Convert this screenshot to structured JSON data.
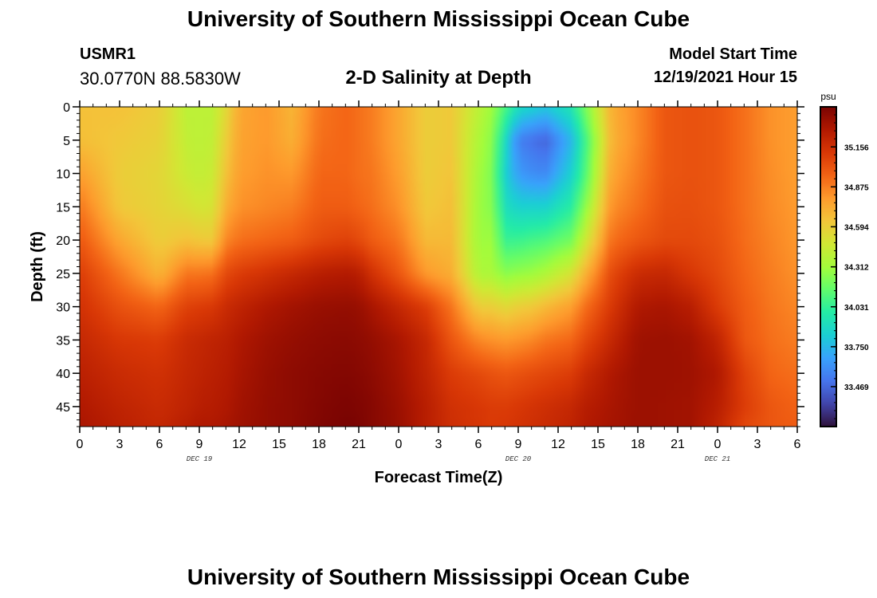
{
  "header": {
    "title": "University of Southern Mississippi Ocean Cube",
    "station_id": "USMR1",
    "coords": "30.0770N  88.5830W",
    "plot_title": "2-D Salinity at Depth",
    "start_label": "Model Start Time",
    "start_value": "12/19/2021 Hour 15"
  },
  "footer": {
    "title": "University of Southern Mississippi Ocean Cube"
  },
  "colors": {
    "colormap": [
      "#30123b",
      "#4145ab",
      "#4675ed",
      "#39a2fc",
      "#1bcfd4",
      "#24eca6",
      "#61fc6c",
      "#a4fc3b",
      "#d1e834",
      "#f3c63a",
      "#fe9b2d",
      "#f36315",
      "#d93806",
      "#b11901",
      "#7a0402"
    ]
  },
  "chart_data": {
    "type": "heatmap",
    "title": "2-D Salinity at Depth",
    "xlabel": "Forecast Time(Z)",
    "ylabel": "Depth (ft)",
    "x_tick_labels": [
      "0",
      "3",
      "6",
      "9",
      "12",
      "15",
      "18",
      "21",
      "0",
      "3",
      "6",
      "9",
      "12",
      "15",
      "18",
      "21",
      "0",
      "3",
      "6"
    ],
    "date_labels": [
      {
        "label": "DEC 19",
        "hours": 9
      },
      {
        "label": "DEC 20",
        "hours": 33
      },
      {
        "label": "DEC 21",
        "hours": 48
      }
    ],
    "x_range_hours": [
      0,
      54
    ],
    "x_step_hours": 1,
    "y_ticks": [
      0,
      5,
      10,
      15,
      20,
      25,
      30,
      35,
      40,
      45
    ],
    "ylim": [
      0,
      48
    ],
    "y_step_ft": 1,
    "colorbar": {
      "unit": "psu",
      "ticks": [
        33.469,
        33.75,
        34.031,
        34.312,
        34.594,
        34.875,
        35.156
      ],
      "range": [
        33.188,
        35.438
      ]
    },
    "profiles": {
      "hours": [
        0,
        3,
        6,
        8,
        9,
        10,
        11,
        12,
        14,
        16,
        18,
        20,
        21,
        22,
        24,
        26,
        28,
        30,
        31,
        32,
        33,
        34,
        35,
        37,
        38,
        40,
        42,
        44,
        46,
        48,
        50,
        52,
        54
      ],
      "depths": [
        0,
        5,
        10,
        15,
        20,
        25,
        30,
        35,
        40,
        45,
        48
      ],
      "values": [
        [
          34.65,
          34.66,
          34.78,
          34.9,
          35.0,
          35.1,
          35.15,
          35.2,
          35.24,
          35.28,
          35.3
        ],
        [
          34.65,
          34.62,
          34.6,
          34.62,
          34.75,
          34.9,
          35.02,
          35.12,
          35.18,
          35.22,
          35.24
        ],
        [
          34.6,
          34.58,
          34.56,
          34.57,
          34.6,
          34.7,
          34.95,
          35.1,
          35.15,
          35.18,
          35.2
        ],
        [
          34.4,
          34.42,
          34.45,
          34.52,
          34.65,
          34.9,
          35.08,
          35.18,
          35.2,
          35.22,
          35.25
        ],
        [
          34.4,
          34.4,
          34.42,
          34.48,
          34.62,
          34.9,
          35.1,
          35.2,
          35.22,
          35.25,
          35.28
        ],
        [
          34.4,
          34.42,
          34.45,
          34.5,
          34.62,
          34.92,
          35.12,
          35.22,
          35.24,
          35.26,
          35.28
        ],
        [
          34.55,
          34.6,
          34.65,
          34.72,
          34.85,
          35.05,
          35.18,
          35.24,
          35.26,
          35.28,
          35.3
        ],
        [
          34.75,
          34.76,
          34.78,
          34.82,
          34.92,
          35.1,
          35.22,
          35.28,
          35.3,
          35.32,
          35.33
        ],
        [
          34.8,
          34.8,
          34.82,
          34.85,
          34.95,
          35.15,
          35.28,
          35.33,
          35.35,
          35.36,
          35.36
        ],
        [
          34.7,
          34.72,
          34.8,
          34.88,
          34.98,
          35.2,
          35.32,
          35.36,
          35.38,
          35.38,
          35.38
        ],
        [
          34.9,
          34.92,
          34.95,
          34.98,
          35.05,
          35.25,
          35.35,
          35.38,
          35.4,
          35.41,
          35.42
        ],
        [
          34.95,
          34.95,
          34.95,
          34.98,
          35.08,
          35.27,
          35.36,
          35.39,
          35.41,
          35.43,
          35.44
        ],
        [
          34.92,
          34.92,
          34.92,
          34.95,
          35.05,
          35.25,
          35.35,
          35.38,
          35.4,
          35.42,
          35.43
        ],
        [
          34.88,
          34.88,
          34.9,
          34.92,
          34.98,
          35.15,
          35.3,
          35.36,
          35.38,
          35.4,
          35.4
        ],
        [
          34.75,
          34.75,
          34.78,
          34.82,
          34.9,
          35.0,
          35.2,
          35.3,
          35.32,
          35.34,
          35.35
        ],
        [
          34.6,
          34.6,
          34.6,
          34.62,
          34.68,
          34.8,
          35.1,
          35.2,
          35.22,
          35.25,
          35.25
        ],
        [
          34.62,
          34.62,
          34.64,
          34.66,
          34.68,
          34.72,
          34.9,
          35.0,
          35.1,
          35.15,
          35.16
        ],
        [
          34.4,
          34.35,
          34.32,
          34.3,
          34.3,
          34.35,
          34.6,
          34.85,
          35.05,
          35.12,
          35.13
        ],
        [
          34.3,
          34.25,
          34.22,
          34.24,
          34.3,
          34.34,
          34.6,
          34.82,
          35.02,
          35.1,
          35.11
        ],
        [
          34.1,
          33.9,
          33.85,
          33.92,
          34.05,
          34.25,
          34.55,
          34.8,
          35.0,
          35.1,
          35.12
        ],
        [
          33.9,
          33.55,
          33.65,
          33.85,
          34.05,
          34.28,
          34.6,
          34.82,
          35.02,
          35.12,
          35.14
        ],
        [
          33.85,
          33.5,
          33.6,
          33.85,
          34.08,
          34.3,
          34.62,
          34.85,
          35.04,
          35.14,
          35.16
        ],
        [
          33.8,
          33.45,
          33.58,
          33.85,
          34.1,
          34.35,
          34.68,
          34.9,
          35.06,
          35.16,
          35.18
        ],
        [
          33.95,
          33.75,
          33.85,
          34.0,
          34.2,
          34.5,
          34.78,
          34.95,
          35.1,
          35.2,
          35.22
        ],
        [
          34.2,
          34.05,
          34.1,
          34.25,
          34.45,
          34.7,
          34.92,
          35.05,
          35.18,
          35.25,
          35.27
        ],
        [
          34.72,
          34.7,
          34.75,
          34.82,
          34.92,
          35.05,
          35.12,
          35.2,
          35.28,
          35.3,
          35.31
        ],
        [
          34.85,
          34.85,
          34.88,
          34.92,
          35.0,
          35.18,
          35.28,
          35.33,
          35.34,
          35.34,
          35.34
        ],
        [
          35.0,
          35.0,
          35.0,
          35.02,
          35.05,
          35.2,
          35.3,
          35.34,
          35.34,
          35.33,
          35.33
        ],
        [
          35.02,
          35.02,
          35.02,
          35.03,
          35.05,
          35.12,
          35.25,
          35.32,
          35.33,
          35.32,
          35.32
        ],
        [
          35.0,
          35.0,
          35.0,
          35.0,
          35.02,
          35.05,
          35.1,
          35.22,
          35.28,
          35.25,
          35.22
        ],
        [
          34.92,
          34.92,
          34.92,
          34.92,
          34.93,
          34.95,
          34.98,
          35.0,
          35.08,
          35.1,
          35.06
        ],
        [
          34.82,
          34.82,
          34.83,
          34.84,
          34.86,
          34.88,
          34.9,
          34.92,
          34.95,
          35.0,
          35.0
        ],
        [
          34.78,
          34.78,
          34.78,
          34.79,
          34.8,
          34.82,
          34.85,
          34.88,
          34.92,
          34.96,
          34.98
        ]
      ]
    }
  }
}
